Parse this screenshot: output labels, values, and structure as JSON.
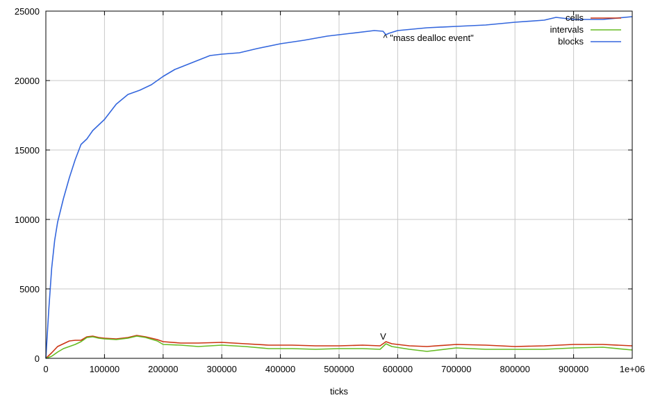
{
  "chart_data": {
    "type": "line",
    "title": "",
    "xlabel": "ticks",
    "ylabel": "",
    "xlim": [
      0,
      1000000
    ],
    "ylim": [
      0,
      25000
    ],
    "xticks": [
      0,
      100000,
      200000,
      300000,
      400000,
      500000,
      600000,
      700000,
      800000,
      900000,
      1000000
    ],
    "xtick_labels": [
      "0",
      "100000",
      "200000",
      "300000",
      "400000",
      "500000",
      "600000",
      "700000",
      "800000",
      "900000",
      "1e+06"
    ],
    "yticks": [
      0,
      5000,
      10000,
      15000,
      20000,
      25000
    ],
    "ytick_labels": [
      "0",
      "5000",
      "10000",
      "15000",
      "20000",
      "25000"
    ],
    "grid": true,
    "legend_position": "top-right",
    "series": [
      {
        "name": "cells",
        "color": "#cc3311",
        "x": [
          0,
          10000,
          20000,
          30000,
          40000,
          50000,
          60000,
          70000,
          80000,
          90000,
          100000,
          120000,
          140000,
          155000,
          170000,
          190000,
          200000,
          230000,
          260000,
          300000,
          340000,
          380000,
          420000,
          460000,
          500000,
          540000,
          570000,
          580000,
          590000,
          620000,
          650000,
          700000,
          750000,
          800000,
          850000,
          900000,
          950000,
          1000000
        ],
        "y": [
          0,
          400,
          850,
          1050,
          1250,
          1300,
          1300,
          1550,
          1600,
          1500,
          1450,
          1400,
          1500,
          1650,
          1550,
          1350,
          1200,
          1100,
          1100,
          1150,
          1050,
          950,
          950,
          900,
          900,
          950,
          900,
          1200,
          1050,
          900,
          850,
          1000,
          950,
          850,
          900,
          1000,
          1000,
          900
        ]
      },
      {
        "name": "intervals",
        "color": "#66bb22",
        "x": [
          0,
          10000,
          20000,
          30000,
          40000,
          50000,
          60000,
          70000,
          80000,
          90000,
          100000,
          120000,
          140000,
          155000,
          170000,
          190000,
          200000,
          230000,
          260000,
          300000,
          340000,
          380000,
          420000,
          460000,
          500000,
          540000,
          570000,
          580000,
          590000,
          620000,
          650000,
          700000,
          750000,
          800000,
          850000,
          900000,
          950000,
          1000000
        ],
        "y": [
          0,
          150,
          450,
          700,
          850,
          1000,
          1200,
          1500,
          1550,
          1450,
          1400,
          1350,
          1450,
          1600,
          1500,
          1250,
          1000,
          950,
          850,
          950,
          850,
          700,
          700,
          650,
          700,
          700,
          650,
          1050,
          850,
          650,
          500,
          750,
          650,
          650,
          650,
          750,
          800,
          600
        ]
      },
      {
        "name": "blocks",
        "color": "#3366dd",
        "x": [
          0,
          5000,
          10000,
          15000,
          20000,
          30000,
          40000,
          50000,
          60000,
          70000,
          80000,
          100000,
          120000,
          140000,
          160000,
          180000,
          200000,
          220000,
          250000,
          280000,
          300000,
          330000,
          360000,
          400000,
          440000,
          480000,
          520000,
          560000,
          575000,
          580000,
          585000,
          600000,
          650000,
          700000,
          750000,
          800000,
          850000,
          870000,
          900000,
          950000,
          1000000
        ],
        "y": [
          0,
          3500,
          6500,
          8500,
          9800,
          11500,
          13000,
          14300,
          15400,
          15800,
          16400,
          17200,
          18300,
          19000,
          19300,
          19700,
          20300,
          20800,
          21300,
          21800,
          21900,
          22000,
          22300,
          22650,
          22900,
          23200,
          23400,
          23600,
          23550,
          23300,
          23400,
          23600,
          23800,
          23900,
          24000,
          24200,
          24350,
          24550,
          24400,
          24400,
          24600
        ]
      }
    ],
    "annotations": [
      {
        "text": "^ \"mass dealloc event\"",
        "x": 580000,
        "y": 23100
      },
      {
        "text": "V",
        "x": 580000,
        "y": 1600
      }
    ]
  }
}
